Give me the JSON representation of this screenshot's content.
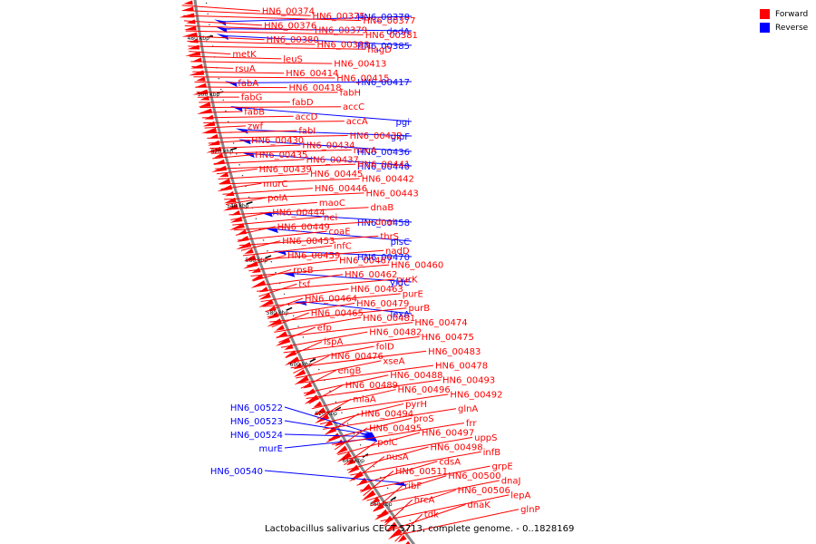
{
  "title": "Lactobacillus salivarius CECT 5713, complete genome. - 0..1828169",
  "legend": {
    "items": [
      {
        "label": "Forward",
        "color": "#ff0000"
      },
      {
        "label": "Reverse",
        "color": "#0000ff"
      }
    ]
  },
  "colors": {
    "forward": "#ff0000",
    "reverse": "#0000ff",
    "backbone": "#888888",
    "tick": "#000000"
  },
  "ticks": [
    "480 kbp",
    "500 kbp",
    "520 kbp",
    "540 kbp",
    "560 kbp",
    "580 kbp",
    "600 kbp",
    "620 kbp",
    "640 kbp",
    "660 kbp"
  ],
  "reverse_labels": [
    "HN6_00378",
    "dedA",
    "HN6_00385",
    "HN6_00417",
    "pgi",
    "glpF",
    "HN6_00436",
    "HN6_00440",
    "HN6_00458",
    "plsC",
    "HN6_00470",
    "yidC",
    "lexA",
    "HN6_00522",
    "HN6_00523",
    "HN6_00524",
    "murE",
    "HN6_00540"
  ],
  "forward_labels": [
    "HN6_00374",
    "HN6_00375",
    "HN6_00377",
    "HN6_00376",
    "HN6_00379",
    "HN6_00381",
    "HN6_00380",
    "HN6_00383",
    "nagD",
    "metK",
    "leuS",
    "HN6_00413",
    "rsuA",
    "HN6_00414",
    "HN6_00415",
    "fabA",
    "HN6_00418",
    "fabH",
    "fabG",
    "fabD",
    "accC",
    "fabB",
    "accD",
    "accA",
    "zwf",
    "fabI",
    "HN6_00432",
    "HN6_00430",
    "HN6_00434",
    "mrcA",
    "HN6_00435",
    "HN6_00437",
    "HN6_00441",
    "HN6_00439",
    "HN6_00445",
    "HN6_00442",
    "murC",
    "HN6_00446",
    "HN6_00443",
    "polA",
    "maoC",
    "dnaB",
    "HN6_00444",
    "nei",
    "dnaI",
    "HN6_00449",
    "coaE",
    "thrS",
    "HN6_00453",
    "infC",
    "nadD",
    "HN6_00459",
    "HN6_00467",
    "HN6_00460",
    "rpsB",
    "HN6_00462",
    "purK",
    "tsf",
    "HN6_00463",
    "purE",
    "HN6_00464",
    "HN6_00479",
    "purB",
    "HN6_00465",
    "HN6_00481",
    "HN6_00474",
    "efp",
    "HN6_00482",
    "HN6_00475",
    "ispA",
    "folD",
    "HN6_00483",
    "HN6_00476",
    "xseA",
    "HN6_00478",
    "engB",
    "HN6_00488",
    "HN6_00493",
    "HN6_00489",
    "HN6_00496",
    "HN6_00492",
    "miaA",
    "pyrH",
    "glnA",
    "HN6_00494",
    "proS",
    "frr",
    "HN6_00495",
    "HN6_00497",
    "uppS",
    "polC",
    "HN6_00498",
    "infB",
    "nusA",
    "cdsA",
    "grpE",
    "HN6_00511",
    "HN6_00500",
    "dnaJ",
    "ribF",
    "HN6_00506",
    "lepA",
    "hrcA",
    "dnaK",
    "glnP",
    "tdk"
  ]
}
